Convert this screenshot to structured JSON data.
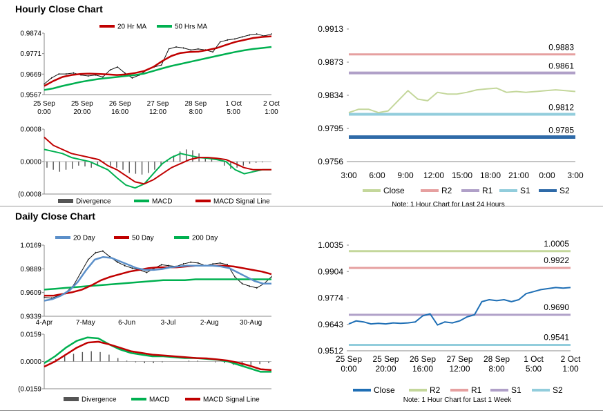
{
  "sections": {
    "hourly": "Hourly Close Chart",
    "daily": "Daily Close Chart"
  },
  "colors": {
    "ma20": "#c00000",
    "ma50": "#00b050",
    "ma200": "#00b050",
    "ma20d": "#5b8fc9",
    "close_blue": "#1f6fb5",
    "r2_green": "#c4d79b",
    "r2_pink": "#e6a0a0",
    "r1_purple": "#b0a0c8",
    "s1_cyan": "#92cddc",
    "s2_blue": "#2e6aa8",
    "divergence": "#555555",
    "macd": "#00b050",
    "signal": "#c00000"
  },
  "chart_data": [
    {
      "id": "hourly_price",
      "type": "line",
      "legend": [
        "20 Hr MA",
        "50 Hrs MA"
      ],
      "yticks": [
        "0.9874",
        "0.9771",
        "0.9669",
        "0.9567"
      ],
      "ylim": [
        0.9567,
        0.9874
      ],
      "xticks": [
        [
          "25 Sep",
          "0:00"
        ],
        [
          "25 Sep",
          "20:00"
        ],
        [
          "26 Sep",
          "16:00"
        ],
        [
          "27 Sep",
          "12:00"
        ],
        [
          "28 Sep",
          "8:00"
        ],
        [
          "1 Oct",
          "5:00"
        ],
        [
          "2 Oct",
          "1:00"
        ]
      ],
      "ma20": [
        0.961,
        0.9635,
        0.9655,
        0.9665,
        0.967,
        0.9672,
        0.967,
        0.9668,
        0.9665,
        0.9668,
        0.9675,
        0.9685,
        0.9705,
        0.9735,
        0.976,
        0.9775,
        0.978,
        0.9782,
        0.979,
        0.98,
        0.9815,
        0.983,
        0.984,
        0.985,
        0.9855,
        0.9858
      ],
      "ma50": [
        0.959,
        0.9598,
        0.961,
        0.962,
        0.963,
        0.9638,
        0.9645,
        0.965,
        0.9655,
        0.966,
        0.9665,
        0.9672,
        0.9685,
        0.9698,
        0.971,
        0.972,
        0.973,
        0.974,
        0.975,
        0.976,
        0.977,
        0.978,
        0.9788,
        0.9795,
        0.98,
        0.9805
      ],
      "close": [
        0.962,
        0.965,
        0.967,
        0.967,
        0.9675,
        0.9665,
        0.966,
        0.9665,
        0.9655,
        0.969,
        0.9705,
        0.9675,
        0.965,
        0.9665,
        0.969,
        0.9705,
        0.9715,
        0.9795,
        0.9805,
        0.98,
        0.979,
        0.9795,
        0.979,
        0.978,
        0.983,
        0.984,
        0.9845,
        0.9855,
        0.9865,
        0.987,
        0.986,
        0.987
      ]
    },
    {
      "id": "hourly_macd",
      "type": "line",
      "legend": [
        "Divergence",
        "MACD",
        "MACD Signal Line"
      ],
      "yticks": [
        "0.0008",
        "0.0000",
        "(0.0008"
      ],
      "ylim": [
        -0.0008,
        0.0008
      ],
      "divergence": [
        -0.00015,
        -0.0002,
        -0.00025,
        -0.0002,
        -0.00018,
        -0.0001,
        -0.00012,
        -0.00015,
        -8e-05,
        -5e-05,
        -0.0001,
        -0.00015,
        -0.0002,
        -0.00028,
        -0.0003,
        -0.00032,
        -0.00028,
        -0.0002,
        -0.0001,
        5e-05,
        0.00015,
        0.00025,
        0.0003,
        0.00028,
        0.0002,
        0.0001,
        5e-05,
        0.0,
        -0.0001,
        -0.00018,
        -0.00015,
        -0.0001,
        -5e-05,
        -3e-05,
        -2e-05,
        0.0
      ],
      "macd": [
        0.0003,
        0.00025,
        0.0002,
        0.0001,
        5e-05,
        0.0,
        -0.0001,
        -0.0002,
        -0.0004,
        -0.00058,
        -0.00065,
        -0.00055,
        -0.0003,
        -5e-05,
        0.0001,
        0.0002,
        0.00015,
        0.0001,
        8e-05,
        5e-05,
        0.0,
        -0.0002,
        -0.0003,
        -0.00025,
        -0.0002,
        -0.0002
      ],
      "signal": [
        0.0006,
        0.0004,
        0.0003,
        0.0002,
        0.00015,
        0.0001,
        5e-05,
        -0.0001,
        -0.0002,
        -0.00035,
        -0.0005,
        -0.00055,
        -0.00045,
        -0.0003,
        -0.00015,
        -5e-05,
        5e-05,
        0.0001,
        0.0001,
        8e-05,
        5e-05,
        -5e-05,
        -0.00015,
        -0.0002,
        -0.0002,
        -0.0002
      ]
    },
    {
      "id": "hourly_levels",
      "type": "line",
      "yticks": [
        "0.9913",
        "0.9873",
        "0.9834",
        "0.9795",
        "0.9756"
      ],
      "ylim": [
        0.9756,
        0.9913
      ],
      "xticks": [
        "3:00",
        "6:00",
        "9:00",
        "12:00",
        "15:00",
        "18:00",
        "21:00",
        "0:00",
        "3:00"
      ],
      "levels": {
        "R2": 0.9883,
        "R1": 0.9861,
        "S1": 0.9812,
        "S2": 0.9785
      },
      "level_labels": {
        "R2": "0.9883",
        "R1": "0.9861",
        "S1": "0.9812",
        "S2": "0.9785"
      },
      "close": [
        0.9814,
        0.9818,
        0.9818,
        0.9814,
        0.9816,
        0.9828,
        0.984,
        0.983,
        0.9828,
        0.9838,
        0.9836,
        0.9836,
        0.9838,
        0.9841,
        0.9842,
        0.9843,
        0.9838,
        0.9839,
        0.9838,
        0.9839,
        0.984,
        0.9841,
        0.984,
        0.9839
      ],
      "legend": [
        "Close",
        "R2",
        "R1",
        "S1",
        "S2"
      ],
      "note": "Note: 1 Hour Chart for Last 24 Hours"
    },
    {
      "id": "daily_price",
      "type": "line",
      "legend": [
        "20 Day",
        "50 Day",
        "200 Day"
      ],
      "yticks": [
        "1.0169",
        "0.9889",
        "0.9609",
        "0.9339"
      ],
      "ylim": [
        0.9339,
        1.0169
      ],
      "xticks": [
        "4-Apr",
        "7-May",
        "6-Jun",
        "3-Jul",
        "2-Aug",
        "30-Aug"
      ],
      "close": [
        0.956,
        0.955,
        0.958,
        0.962,
        0.97,
        0.985,
        1.0,
        1.008,
        1.01,
        1.003,
        0.997,
        0.993,
        0.99,
        0.988,
        0.985,
        0.99,
        0.994,
        0.993,
        0.992,
        0.995,
        0.997,
        0.996,
        0.993,
        0.995,
        0.996,
        0.994,
        0.98,
        0.972,
        0.969,
        0.967,
        0.972,
        0.98
      ],
      "ma20": [
        0.952,
        0.954,
        0.958,
        0.964,
        0.974,
        0.988,
        1.0,
        1.003,
        1.002,
        0.998,
        0.994,
        0.99,
        0.988,
        0.988,
        0.989,
        0.991,
        0.992,
        0.993,
        0.993,
        0.993,
        0.993,
        0.992,
        0.99,
        0.985,
        0.98,
        0.975,
        0.972,
        0.972
      ],
      "ma50": [
        0.958,
        0.958,
        0.96,
        0.962,
        0.965,
        0.97,
        0.976,
        0.98,
        0.983,
        0.986,
        0.988,
        0.99,
        0.991,
        0.991,
        0.991,
        0.992,
        0.993,
        0.993,
        0.993,
        0.993,
        0.992,
        0.99,
        0.988,
        0.986,
        0.983
      ],
      "ma200": [
        0.965,
        0.966,
        0.967,
        0.968,
        0.969,
        0.97,
        0.971,
        0.972,
        0.973,
        0.974,
        0.975,
        0.976,
        0.976,
        0.976,
        0.977,
        0.977,
        0.977,
        0.977,
        0.977,
        0.977,
        0.977,
        0.977
      ]
    },
    {
      "id": "daily_macd",
      "type": "line",
      "legend": [
        "Divergence",
        "MACD",
        "MACD Signal Line"
      ],
      "yticks": [
        "0.0159",
        "0.0000",
        "(0.0159"
      ],
      "ylim": [
        -0.0159,
        0.0159
      ],
      "divergence": [
        0.0005,
        0.0015,
        0.003,
        0.0045,
        0.0055,
        0.006,
        0.0055,
        0.004,
        0.002,
        0.0005,
        -0.0005,
        -0.001,
        -0.001,
        -0.0005,
        0.0,
        0.0,
        0.0005,
        0.0005,
        0.0,
        -0.0005,
        -0.001,
        -0.002,
        -0.0025,
        -0.002,
        -0.0015,
        -0.001
      ],
      "macd": [
        -0.001,
        0.003,
        0.008,
        0.012,
        0.014,
        0.0135,
        0.01,
        0.007,
        0.005,
        0.004,
        0.003,
        0.003,
        0.0025,
        0.002,
        0.002,
        0.0015,
        0.001,
        0.0,
        -0.002,
        -0.004,
        -0.006,
        -0.006
      ],
      "signal": [
        -0.003,
        0.0,
        0.004,
        0.008,
        0.011,
        0.0115,
        0.01,
        0.008,
        0.006,
        0.005,
        0.004,
        0.0035,
        0.003,
        0.0025,
        0.002,
        0.0018,
        0.0012,
        0.0005,
        -0.0008,
        -0.0025,
        -0.0045,
        -0.005
      ]
    },
    {
      "id": "daily_levels",
      "type": "line",
      "yticks": [
        "1.0035",
        "0.9904",
        "0.9774",
        "0.9643",
        "0.9512"
      ],
      "ylim": [
        0.9512,
        1.0035
      ],
      "xticks": [
        [
          "25 Sep",
          "0:00"
        ],
        [
          "25 Sep",
          "20:00"
        ],
        [
          "26 Sep",
          "16:00"
        ],
        [
          "27 Sep",
          "12:00"
        ],
        [
          "28 Sep",
          "8:00"
        ],
        [
          "1 Oct",
          "5:00"
        ],
        [
          "2 Oct",
          "1:00"
        ]
      ],
      "levels": {
        "R2": 1.0005,
        "R1": 0.9922,
        "S1": 0.969,
        "S2": 0.9541
      },
      "level_labels": {
        "R2": "1.0005",
        "R1": "0.9922",
        "S1": "0.9690",
        "S2": "0.9541"
      },
      "close": [
        0.9645,
        0.966,
        0.9655,
        0.9645,
        0.9648,
        0.9645,
        0.965,
        0.9648,
        0.965,
        0.9655,
        0.9685,
        0.9695,
        0.964,
        0.9655,
        0.965,
        0.966,
        0.968,
        0.969,
        0.9755,
        0.9765,
        0.976,
        0.9765,
        0.9755,
        0.9765,
        0.9795,
        0.9805,
        0.9815,
        0.982,
        0.9825,
        0.9822,
        0.9825
      ],
      "legend": [
        "Close",
        "R2",
        "R1",
        "S1",
        "S2"
      ],
      "note": "Note: 1 Hour Chart for Last 1 Week"
    }
  ]
}
